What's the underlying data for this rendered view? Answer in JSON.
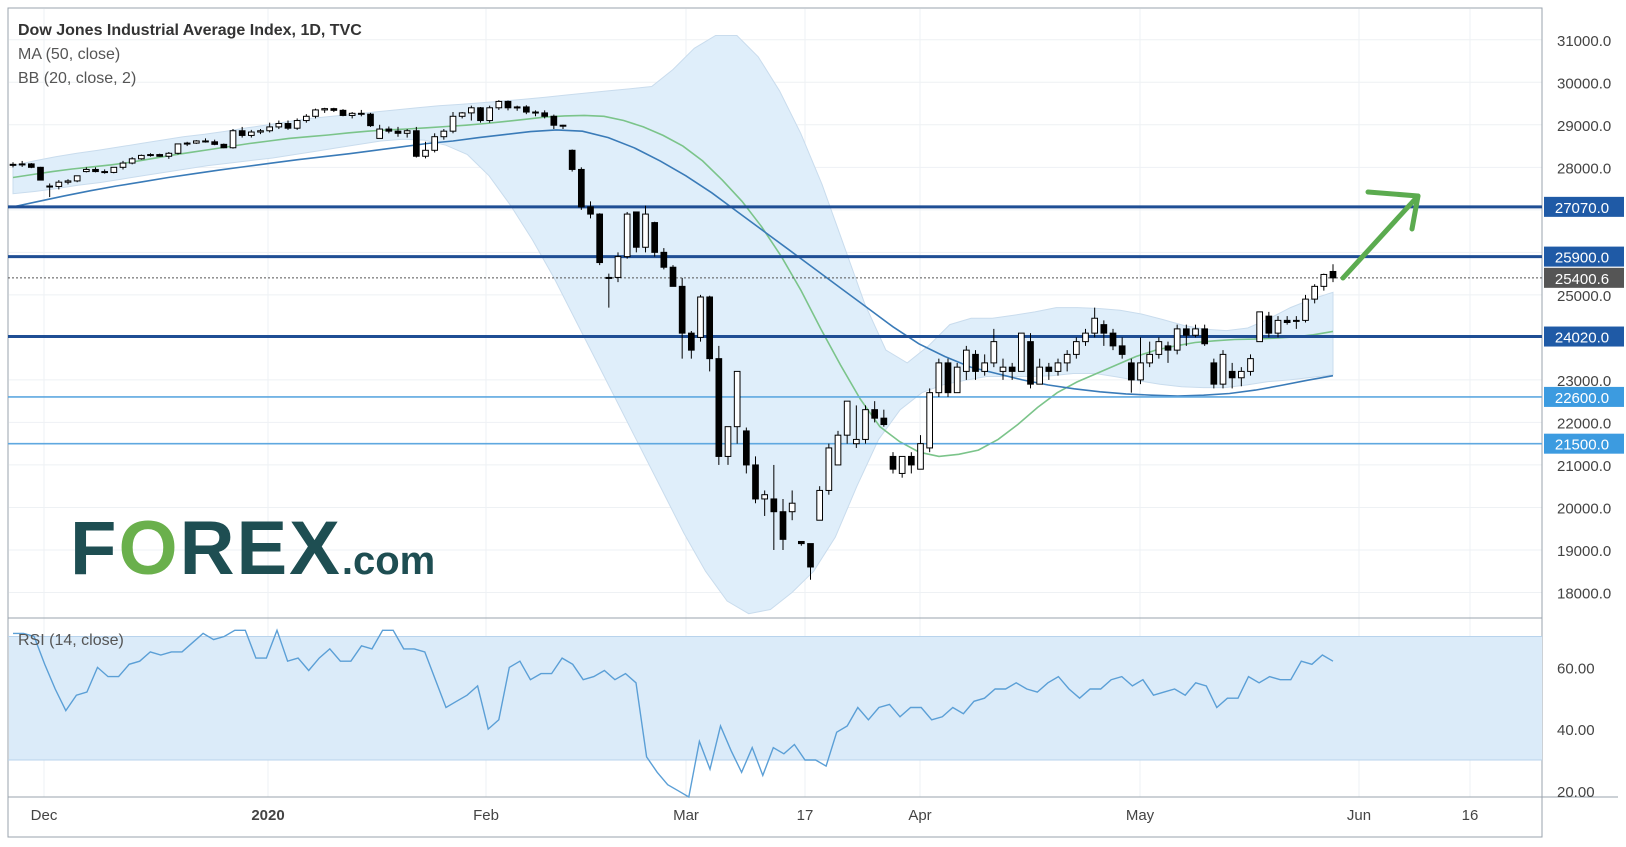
{
  "header": {
    "title": "Dow Jones Industrial Average Index, 1D, TVC",
    "indicator1": "MA (50, close)",
    "indicator2": "BB (20, close, 2)",
    "rsi_label": "RSI (14, close)"
  },
  "logo": {
    "pre": "F",
    "o": "O",
    "post": "REX",
    "suffix": ".com"
  },
  "colors": {
    "candle_up_fill": "#ffffff",
    "candle_down_fill": "#000000",
    "ma50": "#3a7bb8",
    "ma20": "#7bc48a",
    "bb_fill": "#dfeefa",
    "level_dark": "#1f4e94",
    "level_light": "#5fa8e0",
    "arrow": "#5bab4f",
    "rsi_line": "#5b9fd6",
    "rsi_band": "#dbebf9"
  },
  "chart_data": {
    "type": "candlestick",
    "ylim": [
      17400,
      31700
    ],
    "y_ticks": [
      18000,
      19000,
      20000,
      21000,
      22000,
      23000,
      24000,
      25000,
      26000,
      27000,
      28000,
      29000,
      30000,
      31000
    ],
    "y_tick_labels": [
      "18000.0",
      "19000.0",
      "20000.0",
      "21000.0",
      "22000.0",
      "23000.0",
      "24000.0",
      "25000.0",
      "26000.0",
      "27000.0",
      "28000.0",
      "29000.0",
      "30000.0",
      "31000.0"
    ],
    "x_ticks": [
      "Dec",
      "2020",
      "Feb",
      "Mar",
      "17",
      "Apr",
      "May",
      "Jun",
      "16"
    ],
    "price_levels": [
      {
        "value": 27070,
        "label": "27070.0",
        "style": "dark"
      },
      {
        "value": 25900,
        "label": "25900.0",
        "style": "dark"
      },
      {
        "value": 24020,
        "label": "24020.0",
        "style": "dark"
      },
      {
        "value": 22600,
        "label": "22600.0",
        "style": "light"
      },
      {
        "value": 21500,
        "label": "21500.0",
        "style": "light"
      }
    ],
    "last_price": {
      "value": 25400.6,
      "label": "25400.6"
    },
    "candles": [
      [
        28050,
        28120,
        28000,
        28070
      ],
      [
        28070,
        28150,
        28010,
        28080
      ],
      [
        28080,
        28100,
        27980,
        28000
      ],
      [
        28000,
        28010,
        27700,
        27700
      ],
      [
        27560,
        27620,
        27300,
        27550
      ],
      [
        27550,
        27700,
        27480,
        27650
      ],
      [
        27650,
        27720,
        27600,
        27680
      ],
      [
        27680,
        27800,
        27650,
        27800
      ],
      [
        27900,
        28000,
        27880,
        27950
      ],
      [
        27950,
        28000,
        27880,
        27900
      ],
      [
        27900,
        27950,
        27850,
        27880
      ],
      [
        27880,
        28000,
        27860,
        28000
      ],
      [
        28000,
        28150,
        27950,
        28100
      ],
      [
        28100,
        28240,
        28070,
        28200
      ],
      [
        28200,
        28300,
        28180,
        28280
      ],
      [
        28280,
        28330,
        28250,
        28300
      ],
      [
        28300,
        28320,
        28250,
        28260
      ],
      [
        28260,
        28360,
        28200,
        28330
      ],
      [
        28330,
        28560,
        28300,
        28550
      ],
      [
        28550,
        28600,
        28500,
        28570
      ],
      [
        28570,
        28640,
        28550,
        28620
      ],
      [
        28620,
        28680,
        28580,
        28600
      ],
      [
        28600,
        28650,
        28520,
        28540
      ],
      [
        28540,
        28560,
        28450,
        28460
      ],
      [
        28460,
        28900,
        28440,
        28860
      ],
      [
        28860,
        28950,
        28700,
        28750
      ],
      [
        28750,
        28880,
        28700,
        28830
      ],
      [
        28830,
        28900,
        28780,
        28860
      ],
      [
        28860,
        29050,
        28820,
        28950
      ],
      [
        28950,
        29100,
        28900,
        29030
      ],
      [
        29030,
        29100,
        28880,
        28920
      ],
      [
        28920,
        29150,
        28880,
        29100
      ],
      [
        29100,
        29250,
        29050,
        29200
      ],
      [
        29200,
        29380,
        29150,
        29350
      ],
      [
        29350,
        29400,
        29280,
        29380
      ],
      [
        29380,
        29400,
        29300,
        29340
      ],
      [
        29340,
        29370,
        29200,
        29220
      ],
      [
        29220,
        29300,
        29150,
        29270
      ],
      [
        29270,
        29350,
        29200,
        29250
      ],
      [
        29250,
        29280,
        28950,
        28980
      ],
      [
        28680,
        29000,
        28700,
        28900
      ],
      [
        28900,
        28960,
        28800,
        28850
      ],
      [
        28850,
        28950,
        28720,
        28800
      ],
      [
        28800,
        28900,
        28700,
        28860
      ],
      [
        28860,
        28950,
        28230,
        28260
      ],
      [
        28260,
        28600,
        28210,
        28400
      ],
      [
        28400,
        28800,
        28350,
        28720
      ],
      [
        28720,
        28900,
        28650,
        28850
      ],
      [
        28850,
        29300,
        28800,
        29200
      ],
      [
        29200,
        29300,
        29150,
        29280
      ],
      [
        29280,
        29450,
        29100,
        29400
      ],
      [
        29400,
        29420,
        29050,
        29100
      ],
      [
        29100,
        29450,
        29050,
        29400
      ],
      [
        29400,
        29580,
        29350,
        29550
      ],
      [
        29550,
        29570,
        29340,
        29400
      ],
      [
        29400,
        29450,
        29330,
        29420
      ],
      [
        29420,
        29460,
        29250,
        29300
      ],
      [
        29300,
        29340,
        29200,
        29280
      ],
      [
        29280,
        29340,
        29150,
        29200
      ],
      [
        29200,
        29240,
        28900,
        28990
      ],
      [
        28990,
        29000,
        28900,
        28990
      ],
      [
        28400,
        28420,
        27900,
        27950
      ],
      [
        27950,
        28000,
        27000,
        27070
      ],
      [
        27070,
        27200,
        26800,
        26900
      ],
      [
        26900,
        26920,
        25700,
        25760
      ],
      [
        25400,
        25500,
        24700,
        25410
      ],
      [
        25410,
        26000,
        25300,
        25900
      ],
      [
        25900,
        26950,
        25850,
        26900
      ],
      [
        26950,
        26960,
        26000,
        26120
      ],
      [
        26120,
        27100,
        26000,
        26900
      ],
      [
        26700,
        26720,
        25900,
        26000
      ],
      [
        26000,
        26100,
        25600,
        25650
      ],
      [
        25650,
        25700,
        25200,
        25200
      ],
      [
        25200,
        25400,
        23500,
        24100
      ],
      [
        24100,
        24150,
        23500,
        23700
      ],
      [
        24000,
        25000,
        23900,
        24950
      ],
      [
        24950,
        24980,
        23200,
        23500
      ],
      [
        23500,
        23800,
        21000,
        21200
      ],
      [
        21200,
        21900,
        21000,
        21900
      ],
      [
        21900,
        23200,
        21500,
        23200
      ],
      [
        21800,
        21880,
        20800,
        21000
      ],
      [
        21000,
        21200,
        20100,
        20200
      ],
      [
        20200,
        20400,
        19800,
        20300
      ],
      [
        20200,
        21000,
        19000,
        19900
      ],
      [
        19900,
        20200,
        19000,
        19250
      ],
      [
        19900,
        20400,
        19700,
        20100
      ],
      [
        19200,
        19200,
        19100,
        19150
      ],
      [
        19150,
        19150,
        18300,
        18600
      ],
      [
        19700,
        20500,
        19700,
        20400
      ],
      [
        20400,
        21500,
        20300,
        21400
      ],
      [
        21000,
        21800,
        21000,
        21700
      ],
      [
        21700,
        22500,
        21500,
        22500
      ],
      [
        21500,
        22400,
        21400,
        21600
      ],
      [
        21600,
        22400,
        21500,
        22300
      ],
      [
        22300,
        22500,
        22000,
        22100
      ],
      [
        22100,
        22300,
        21900,
        21950
      ],
      [
        21200,
        21300,
        20800,
        20900
      ],
      [
        20800,
        21200,
        20700,
        21200
      ],
      [
        21200,
        21300,
        20800,
        21000
      ],
      [
        20900,
        21700,
        20900,
        21500
      ],
      [
        21400,
        22800,
        21300,
        22700
      ],
      [
        22700,
        23500,
        22600,
        23400
      ],
      [
        23400,
        23500,
        22600,
        22700
      ],
      [
        22700,
        23400,
        22700,
        23300
      ],
      [
        23200,
        23800,
        23000,
        23700
      ],
      [
        23600,
        23700,
        23000,
        23200
      ],
      [
        23200,
        23600,
        23100,
        23400
      ],
      [
        23400,
        24200,
        23300,
        23900
      ],
      [
        23200,
        23500,
        23000,
        23300
      ],
      [
        23300,
        23400,
        23000,
        23200
      ],
      [
        23200,
        24100,
        23200,
        24100
      ],
      [
        23900,
        24100,
        22800,
        22900
      ],
      [
        22900,
        23500,
        22900,
        23300
      ],
      [
        23300,
        23400,
        23000,
        23200
      ],
      [
        23200,
        23500,
        23100,
        23400
      ],
      [
        23400,
        23700,
        23200,
        23600
      ],
      [
        23600,
        24000,
        23500,
        23900
      ],
      [
        23900,
        24200,
        23800,
        24100
      ],
      [
        24100,
        24700,
        24000,
        24450
      ],
      [
        24300,
        24400,
        23800,
        24100
      ],
      [
        24100,
        24200,
        23700,
        23800
      ],
      [
        23800,
        24000,
        23500,
        23600
      ],
      [
        23400,
        23500,
        22700,
        23000
      ],
      [
        23000,
        24000,
        22900,
        23400
      ],
      [
        23400,
        23900,
        23300,
        23600
      ],
      [
        23600,
        24000,
        23500,
        23900
      ],
      [
        23800,
        23900,
        23400,
        23700
      ],
      [
        23700,
        24300,
        23600,
        24200
      ],
      [
        24200,
        24300,
        23800,
        24050
      ],
      [
        24050,
        24300,
        24000,
        24200
      ],
      [
        24200,
        24300,
        23800,
        23850
      ],
      [
        23400,
        23500,
        22800,
        22900
      ],
      [
        22900,
        23700,
        22800,
        23600
      ],
      [
        23200,
        23400,
        22800,
        23050
      ],
      [
        23050,
        23300,
        22850,
        23200
      ],
      [
        23200,
        23600,
        23100,
        23500
      ],
      [
        23900,
        24600,
        23900,
        24600
      ],
      [
        24500,
        24600,
        24000,
        24100
      ],
      [
        24100,
        24500,
        24000,
        24400
      ],
      [
        24400,
        24500,
        24300,
        24350
      ],
      [
        24400,
        24500,
        24200,
        24400
      ],
      [
        24400,
        25000,
        24350,
        24900
      ],
      [
        24900,
        25250,
        24800,
        25200
      ],
      [
        25200,
        25500,
        25100,
        25480
      ],
      [
        25550,
        25720,
        25300,
        25400
      ]
    ],
    "ma20": [
      27760,
      27830,
      27900,
      27960,
      28010,
      28060,
      28120,
      28200,
      28280,
      28350,
      28420,
      28490,
      28560,
      28620,
      28680,
      28720,
      28760,
      28810,
      28850,
      28880,
      28900,
      28930,
      28960,
      28990,
      29030,
      29080,
      29130,
      29180,
      29210,
      29220,
      29200,
      29100,
      28950,
      28750,
      28500,
      28150,
      27700,
      27200,
      26600,
      25900,
      25100,
      24200,
      23350,
      22550,
      21900,
      21550,
      21300,
      21200,
      21250,
      21350,
      21600,
      21950,
      22350,
      22700,
      22950,
      23150,
      23350,
      23550,
      23700,
      23800,
      23880,
      23920,
      23950,
      23960,
      23980,
      24010,
      24060,
      24140
    ],
    "ma50": [
      27070,
      27200,
      27330,
      27450,
      27560,
      27660,
      27760,
      27850,
      27940,
      28020,
      28100,
      28180,
      28250,
      28320,
      28400,
      28480,
      28560,
      28620,
      28700,
      28770,
      28840,
      28880,
      28850,
      28700,
      28460,
      28150,
      27800,
      27400,
      26950,
      26500,
      26050,
      25600,
      25150,
      24700,
      24250,
      23850,
      23550,
      23300,
      23150,
      23000,
      22880,
      22790,
      22720,
      22670,
      22640,
      22620,
      22640,
      22680,
      22760,
      22870,
      22990,
      23100
    ],
    "bb_upper": [
      28040,
      28150,
      28250,
      28330,
      28400,
      28480,
      28560,
      28640,
      28720,
      28780,
      28850,
      28930,
      29000,
      29080,
      29150,
      29200,
      29250,
      29300,
      29350,
      29400,
      29450,
      29480,
      29520,
      29560,
      29600,
      29650,
      29700,
      29750,
      29800,
      29850,
      29900,
      30300,
      30800,
      31100,
      31100,
      30600,
      29800,
      28800,
      27600,
      26200,
      24800,
      23700,
      23400,
      23800,
      24300,
      24450,
      24450,
      24520,
      24600,
      24700,
      24700,
      24680,
      24640,
      24550,
      24420,
      24280,
      24190,
      24160,
      24220,
      24440,
      24700,
      24900,
      25060
    ],
    "bb_lower": [
      27380,
      27430,
      27500,
      27580,
      27640,
      27720,
      27800,
      27880,
      27960,
      28040,
      28100,
      28160,
      28220,
      28300,
      28380,
      28460,
      28540,
      28620,
      28660,
      28640,
      28520,
      28300,
      27800,
      27100,
      26300,
      25400,
      24400,
      23400,
      22400,
      21400,
      20400,
      19400,
      18500,
      17800,
      17500,
      17600,
      18000,
      18500,
      19300,
      20500,
      21600,
      22300,
      22700,
      22890,
      22990,
      23080,
      23080,
      23080,
      23100,
      23150,
      23150,
      23070,
      22980,
      22900,
      22840,
      22820,
      22820,
      22880,
      22960,
      23000,
      23060,
      23120
    ],
    "rsi": {
      "label": "RSI (14, close)",
      "ylim": [
        18,
        76
      ],
      "band": [
        30,
        70
      ],
      "y_ticks": [
        20,
        40,
        60
      ],
      "y_tick_labels": [
        "20.00",
        "40.00",
        "60.00"
      ],
      "values": [
        71,
        71,
        70,
        61,
        53,
        46,
        51,
        52,
        60,
        57,
        57,
        61,
        62,
        65,
        64,
        65,
        65,
        68,
        71,
        69,
        70,
        72,
        72,
        63,
        63,
        72,
        62,
        63,
        59,
        63,
        66,
        62,
        62,
        67,
        66,
        72,
        72,
        66,
        66,
        65,
        56,
        47,
        49,
        51,
        54,
        40,
        43,
        60,
        62,
        56,
        58,
        58,
        63,
        61,
        56,
        57,
        59,
        56,
        58,
        55,
        31,
        26,
        22,
        20,
        18,
        36,
        27,
        41,
        33,
        26,
        34,
        25,
        34,
        32,
        35,
        30,
        30,
        28,
        39,
        41,
        47,
        43,
        47,
        48,
        44,
        47,
        47,
        43,
        44,
        47,
        45,
        49,
        50,
        53,
        53,
        55,
        53,
        52,
        55,
        57,
        53,
        50,
        53,
        53,
        56,
        57,
        54,
        56,
        51,
        52,
        53,
        51,
        55,
        54,
        47,
        50,
        50,
        57,
        55,
        57,
        56,
        56,
        62,
        61,
        64,
        62
      ]
    }
  }
}
